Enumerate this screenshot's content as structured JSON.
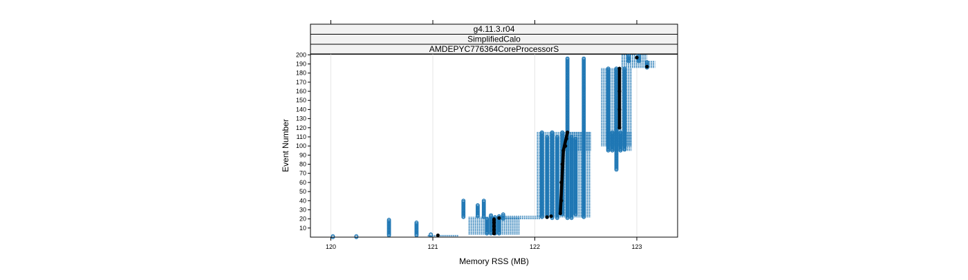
{
  "chart_data": {
    "type": "scatter",
    "strips": [
      "g4.11.3.r04",
      "SimplifiedCalo",
      "AMDEPYC776364CoreProcessorS"
    ],
    "xlabel": "Memory RSS (MB)",
    "ylabel": "Event Number",
    "xlim": [
      119.8,
      123.4
    ],
    "ylim": [
      0,
      201
    ],
    "x_ticks": [
      120,
      121,
      122,
      123
    ],
    "y_ticks": [
      10,
      20,
      30,
      40,
      50,
      60,
      70,
      80,
      90,
      100,
      110,
      120,
      130,
      140,
      150,
      160,
      170,
      180,
      190,
      200
    ],
    "grid": true,
    "colors": {
      "points": "#1f77b4",
      "median": "#000000",
      "strip_fill": "#f2f2f2"
    },
    "range_bars": [
      {
        "x0": 120.95,
        "x1": 121.25,
        "y0": 0,
        "y1": 2
      },
      {
        "x0": 121.35,
        "x1": 121.85,
        "y0": 3,
        "y1": 22
      },
      {
        "x0": 121.65,
        "x1": 122.05,
        "y0": 20,
        "y1": 23
      },
      {
        "x0": 122.02,
        "x1": 122.55,
        "y0": 22,
        "y1": 115
      },
      {
        "x0": 122.3,
        "x1": 122.55,
        "y0": 95,
        "y1": 115
      },
      {
        "x0": 122.65,
        "x1": 122.95,
        "y0": 100,
        "y1": 185
      },
      {
        "x0": 122.7,
        "x1": 122.95,
        "y0": 95,
        "y1": 115
      },
      {
        "x0": 122.85,
        "x1": 123.18,
        "y0": 186,
        "y1": 193
      },
      {
        "x0": 122.85,
        "x1": 123.1,
        "y0": 193,
        "y1": 200
      }
    ],
    "point_columns": [
      {
        "x": 120.02,
        "y0": 0,
        "y1": 1,
        "step": 1
      },
      {
        "x": 120.25,
        "y0": 0,
        "y1": 1,
        "step": 1
      },
      {
        "x": 120.57,
        "y0": 2,
        "y1": 19,
        "step": 1
      },
      {
        "x": 120.84,
        "y0": 2,
        "y1": 16,
        "step": 1
      },
      {
        "x": 120.98,
        "y0": 2,
        "y1": 3,
        "step": 1
      },
      {
        "x": 121.3,
        "y0": 22,
        "y1": 40,
        "step": 1
      },
      {
        "x": 121.44,
        "y0": 23,
        "y1": 35,
        "step": 1
      },
      {
        "x": 121.5,
        "y0": 22,
        "y1": 40,
        "step": 1
      },
      {
        "x": 121.53,
        "y0": 4,
        "y1": 20,
        "step": 1
      },
      {
        "x": 121.57,
        "y0": 4,
        "y1": 24,
        "step": 1
      },
      {
        "x": 121.61,
        "y0": 4,
        "y1": 22,
        "step": 1
      },
      {
        "x": 121.65,
        "y0": 4,
        "y1": 23,
        "step": 1
      },
      {
        "x": 121.69,
        "y0": 20,
        "y1": 25,
        "step": 1
      },
      {
        "x": 122.07,
        "y0": 22,
        "y1": 115,
        "step": 1
      },
      {
        "x": 122.12,
        "y0": 22,
        "y1": 110,
        "step": 1
      },
      {
        "x": 122.17,
        "y0": 21,
        "y1": 115,
        "step": 1
      },
      {
        "x": 122.22,
        "y0": 21,
        "y1": 110,
        "step": 1
      },
      {
        "x": 122.27,
        "y0": 25,
        "y1": 115,
        "step": 1
      },
      {
        "x": 122.32,
        "y0": 21,
        "y1": 196,
        "step": 1
      },
      {
        "x": 122.36,
        "y0": 21,
        "y1": 110,
        "step": 1
      },
      {
        "x": 122.4,
        "y0": 25,
        "y1": 108,
        "step": 1
      },
      {
        "x": 122.48,
        "y0": 22,
        "y1": 196,
        "step": 1
      },
      {
        "x": 122.72,
        "y0": 95,
        "y1": 185,
        "step": 1
      },
      {
        "x": 122.76,
        "y0": 95,
        "y1": 115,
        "step": 1
      },
      {
        "x": 122.8,
        "y0": 74,
        "y1": 185,
        "step": 1
      },
      {
        "x": 122.84,
        "y0": 95,
        "y1": 115,
        "step": 1
      },
      {
        "x": 122.88,
        "y0": 96,
        "y1": 185,
        "step": 1
      },
      {
        "x": 122.92,
        "y0": 193,
        "y1": 199,
        "step": 1
      },
      {
        "x": 123.02,
        "y0": 193,
        "y1": 199,
        "step": 1
      },
      {
        "x": 123.1,
        "y0": 186,
        "y1": 192,
        "step": 1
      }
    ],
    "median_points": [
      {
        "x": 121.05,
        "y": 2
      },
      {
        "x": 121.6,
        "y": 4
      },
      {
        "x": 121.6,
        "y": 8
      },
      {
        "x": 121.6,
        "y": 12
      },
      {
        "x": 121.6,
        "y": 16
      },
      {
        "x": 121.6,
        "y": 19
      },
      {
        "x": 121.65,
        "y": 21
      },
      {
        "x": 122.12,
        "y": 22
      },
      {
        "x": 122.16,
        "y": 23
      },
      {
        "x": 122.25,
        "y": 26
      },
      {
        "x": 122.26,
        "y": 40
      },
      {
        "x": 122.26,
        "y": 60
      },
      {
        "x": 122.27,
        "y": 80
      },
      {
        "x": 122.28,
        "y": 95
      },
      {
        "x": 122.3,
        "y": 100
      },
      {
        "x": 122.31,
        "y": 108
      },
      {
        "x": 122.32,
        "y": 115
      },
      {
        "x": 122.83,
        "y": 120
      },
      {
        "x": 122.83,
        "y": 140
      },
      {
        "x": 122.83,
        "y": 160
      },
      {
        "x": 122.83,
        "y": 185
      },
      {
        "x": 123.0,
        "y": 197
      },
      {
        "x": 123.1,
        "y": 187
      }
    ]
  }
}
